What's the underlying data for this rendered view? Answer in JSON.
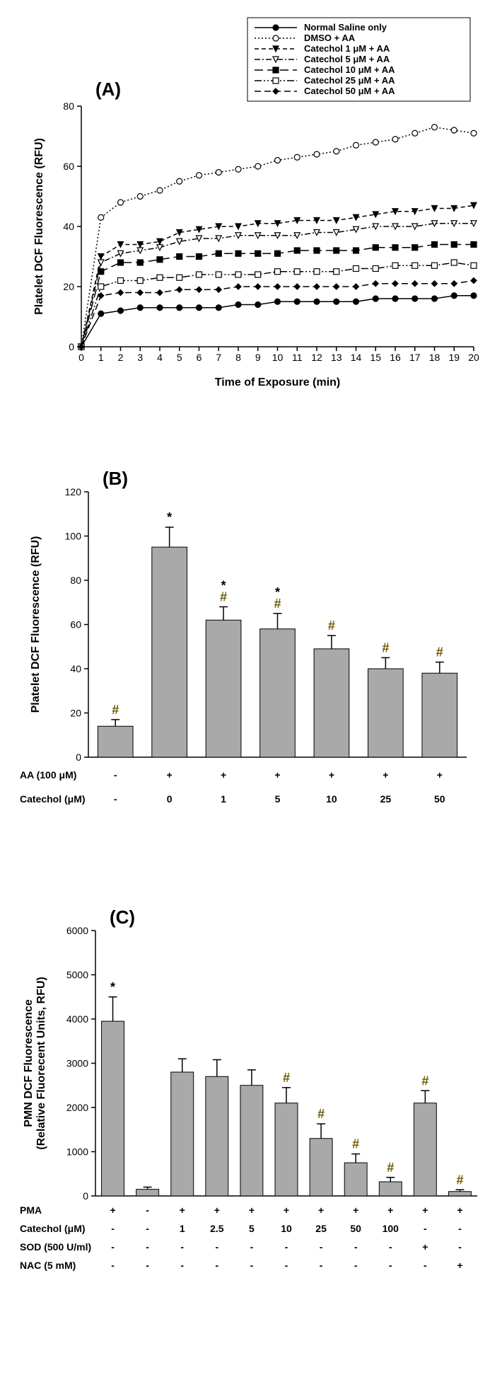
{
  "panelA": {
    "label": "(A)",
    "type": "line",
    "xlabel": "Time of Exposure (min)",
    "ylabel": "Platelet DCF Fluorescence (RFU)",
    "xlim": [
      0,
      20
    ],
    "ylim": [
      0,
      80
    ],
    "xticks": [
      0,
      1,
      2,
      3,
      4,
      5,
      6,
      7,
      8,
      9,
      10,
      11,
      12,
      13,
      14,
      15,
      16,
      17,
      18,
      19,
      20
    ],
    "yticks": [
      0,
      20,
      40,
      60,
      80
    ],
    "x": [
      0,
      1,
      2,
      3,
      4,
      5,
      6,
      7,
      8,
      9,
      10,
      11,
      12,
      13,
      14,
      15,
      16,
      17,
      18,
      19,
      20
    ],
    "legend": [
      {
        "label": "Normal Saline only",
        "marker": "circle",
        "fill": "#000",
        "dash": "none"
      },
      {
        "label": "DMSO + AA",
        "marker": "circle",
        "fill": "#fff",
        "dash": "dot"
      },
      {
        "label": "Catechol 1 μM + AA",
        "marker": "triangle-down",
        "fill": "#000",
        "dash": "short"
      },
      {
        "label": "Catechol 5 μM + AA",
        "marker": "triangle-down",
        "fill": "#fff",
        "dash": "dashdot"
      },
      {
        "label": "Catechol 10 μM + AA",
        "marker": "square",
        "fill": "#000",
        "dash": "long"
      },
      {
        "label": "Catechol 25 μM + AA",
        "marker": "square",
        "fill": "#fff",
        "dash": "dashdotdot"
      },
      {
        "label": "Catechol 50 μM + AA",
        "marker": "diamond",
        "fill": "#000",
        "dash": "med"
      }
    ],
    "series": [
      [
        0,
        11,
        12,
        13,
        13,
        13,
        13,
        13,
        14,
        14,
        15,
        15,
        15,
        15,
        15,
        16,
        16,
        16,
        16,
        17,
        17
      ],
      [
        0,
        43,
        48,
        50,
        52,
        55,
        57,
        58,
        59,
        60,
        62,
        63,
        64,
        65,
        67,
        68,
        69,
        71,
        73,
        72,
        71
      ],
      [
        0,
        30,
        34,
        34,
        35,
        38,
        39,
        40,
        40,
        41,
        41,
        42,
        42,
        42,
        43,
        44,
        45,
        45,
        46,
        46,
        47
      ],
      [
        0,
        28,
        31,
        32,
        33,
        35,
        36,
        36,
        37,
        37,
        37,
        37,
        38,
        38,
        39,
        40,
        40,
        40,
        41,
        41,
        41
      ],
      [
        0,
        25,
        28,
        28,
        29,
        30,
        30,
        31,
        31,
        31,
        31,
        32,
        32,
        32,
        32,
        33,
        33,
        33,
        34,
        34,
        34
      ],
      [
        0,
        20,
        22,
        22,
        23,
        23,
        24,
        24,
        24,
        24,
        25,
        25,
        25,
        25,
        26,
        26,
        27,
        27,
        27,
        28,
        27
      ],
      [
        0,
        17,
        18,
        18,
        18,
        19,
        19,
        19,
        20,
        20,
        20,
        20,
        20,
        20,
        20,
        21,
        21,
        21,
        21,
        21,
        22
      ]
    ]
  },
  "panelB": {
    "label": "(B)",
    "type": "bar",
    "ylabel": "Platelet DCF Fluorescence (RFU)",
    "ylim": [
      0,
      120
    ],
    "yticks": [
      0,
      20,
      40,
      60,
      80,
      100,
      120
    ],
    "bar_fill": "#a9a9a9",
    "row_labels": [
      "AA (100 μM)",
      "Catechol (μM)"
    ],
    "columns": [
      {
        "AA": "-",
        "Cat": "-"
      },
      {
        "AA": "+",
        "Cat": "0"
      },
      {
        "AA": "+",
        "Cat": "1"
      },
      {
        "AA": "+",
        "Cat": "5"
      },
      {
        "AA": "+",
        "Cat": "10"
      },
      {
        "AA": "+",
        "Cat": "25"
      },
      {
        "AA": "+",
        "Cat": "50"
      }
    ],
    "values": [
      14,
      95,
      62,
      58,
      49,
      40,
      38
    ],
    "errors": [
      3,
      9,
      6,
      7,
      6,
      5,
      5
    ],
    "sig": [
      "#",
      "*",
      "*#",
      "*#",
      "#",
      "#",
      "#"
    ]
  },
  "panelC": {
    "label": "(C)",
    "type": "bar",
    "ylabel": "PMN DCF Fluorescence\n(Relative Fluorecent Units, RFU)",
    "ylim": [
      0,
      6000
    ],
    "yticks": [
      0,
      1000,
      2000,
      3000,
      4000,
      5000,
      6000
    ],
    "bar_fill": "#a9a9a9",
    "row_labels": [
      "PMA",
      "Catechol (μM)",
      "SOD (500 U/ml)",
      "NAC (5 mM)"
    ],
    "columns": [
      {
        "PMA": "+",
        "Cat": "-",
        "SOD": "-",
        "NAC": "-"
      },
      {
        "PMA": "-",
        "Cat": "-",
        "SOD": "-",
        "NAC": "-"
      },
      {
        "PMA": "+",
        "Cat": "1",
        "SOD": "-",
        "NAC": "-"
      },
      {
        "PMA": "+",
        "Cat": "2.5",
        "SOD": "-",
        "NAC": "-"
      },
      {
        "PMA": "+",
        "Cat": "5",
        "SOD": "-",
        "NAC": "-"
      },
      {
        "PMA": "+",
        "Cat": "10",
        "SOD": "-",
        "NAC": "-"
      },
      {
        "PMA": "+",
        "Cat": "25",
        "SOD": "-",
        "NAC": "-"
      },
      {
        "PMA": "+",
        "Cat": "50",
        "SOD": "-",
        "NAC": "-"
      },
      {
        "PMA": "+",
        "Cat": "100",
        "SOD": "-",
        "NAC": "-"
      },
      {
        "PMA": "+",
        "Cat": "-",
        "SOD": "+",
        "NAC": "-"
      },
      {
        "PMA": "+",
        "Cat": "-",
        "SOD": "-",
        "NAC": "+"
      }
    ],
    "values": [
      3950,
      150,
      2800,
      2700,
      2500,
      2100,
      1300,
      750,
      320,
      2100,
      100
    ],
    "errors": [
      550,
      50,
      300,
      380,
      350,
      350,
      330,
      200,
      100,
      280,
      40
    ],
    "sig": [
      "*",
      "",
      "",
      "",
      "",
      "#",
      "#",
      "#",
      "#",
      "#",
      "#"
    ]
  }
}
